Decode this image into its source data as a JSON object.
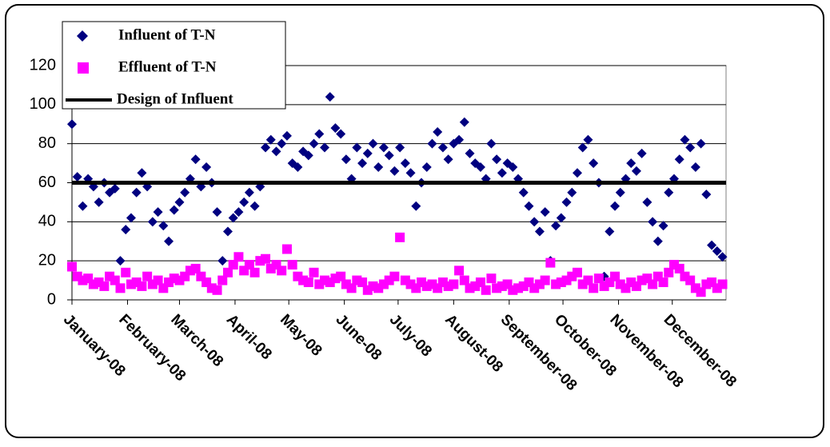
{
  "chart_data": {
    "type": "scatter",
    "xlim": [
      1,
      366
    ],
    "ylim": [
      0,
      120
    ],
    "xticks": [
      {
        "value": 1,
        "label": "January-08"
      },
      {
        "value": 32,
        "label": "February-08"
      },
      {
        "value": 61,
        "label": "March-08"
      },
      {
        "value": 92,
        "label": "April-08"
      },
      {
        "value": 122,
        "label": "May-08"
      },
      {
        "value": 153,
        "label": "June-08"
      },
      {
        "value": 183,
        "label": "July-08"
      },
      {
        "value": 214,
        "label": "August-08"
      },
      {
        "value": 245,
        "label": "September-08"
      },
      {
        "value": 275,
        "label": "October-08"
      },
      {
        "value": 306,
        "label": "November-08"
      },
      {
        "value": 336,
        "label": "December-08"
      }
    ],
    "yticks": [
      0,
      20,
      40,
      60,
      80,
      100,
      120
    ],
    "grid": true,
    "legend": "top-left",
    "x": [
      1,
      4,
      7,
      10,
      13,
      16,
      19,
      22,
      25,
      28,
      31,
      34,
      37,
      40,
      43,
      46,
      49,
      52,
      55,
      58,
      61,
      64,
      67,
      70,
      73,
      76,
      79,
      82,
      85,
      88,
      91,
      94,
      97,
      100,
      103,
      106,
      109,
      112,
      115,
      118,
      121,
      124,
      127,
      130,
      133,
      136,
      139,
      142,
      145,
      148,
      151,
      154,
      157,
      160,
      163,
      166,
      169,
      172,
      175,
      178,
      181,
      184,
      187,
      190,
      193,
      196,
      199,
      202,
      205,
      208,
      211,
      214,
      217,
      220,
      223,
      226,
      229,
      232,
      235,
      238,
      241,
      244,
      247,
      250,
      253,
      256,
      259,
      262,
      265,
      268,
      271,
      274,
      277,
      280,
      283,
      286,
      289,
      292,
      295,
      298,
      301,
      304,
      307,
      310,
      313,
      316,
      319,
      322,
      325,
      328,
      331,
      334,
      337,
      340,
      343,
      346,
      349,
      352,
      355,
      358,
      361,
      364
    ],
    "series": [
      {
        "name": "Influent of T-N",
        "color": "#000080",
        "marker": "diamond",
        "values": [
          90,
          63,
          48,
          62,
          58,
          50,
          60,
          55,
          57,
          20,
          36,
          42,
          55,
          65,
          58,
          40,
          45,
          38,
          30,
          46,
          50,
          55,
          62,
          72,
          58,
          68,
          60,
          45,
          20,
          35,
          42,
          45,
          50,
          55,
          48,
          58,
          78,
          82,
          76,
          80,
          84,
          70,
          68,
          76,
          74,
          80,
          85,
          78,
          104,
          88,
          85,
          72,
          62,
          78,
          70,
          75,
          80,
          68,
          78,
          74,
          66,
          78,
          70,
          65,
          48,
          60,
          68,
          80,
          86,
          78,
          72,
          80,
          82,
          91,
          75,
          70,
          68,
          62,
          80,
          72,
          65,
          70,
          68,
          62,
          55,
          48,
          40,
          35,
          45,
          20,
          38,
          42,
          50,
          55,
          65,
          78,
          82,
          70,
          60,
          12,
          35,
          48,
          55,
          62,
          70,
          66,
          75,
          50,
          40,
          30,
          38,
          55,
          62,
          72,
          82,
          78,
          68,
          80,
          54,
          28,
          25,
          22
        ]
      },
      {
        "name": "Effluent of T-N",
        "color": "#ff00ff",
        "marker": "square",
        "values": [
          17,
          12,
          10,
          11,
          8,
          9,
          7,
          12,
          10,
          6,
          14,
          8,
          9,
          7,
          12,
          8,
          10,
          6,
          9,
          11,
          10,
          12,
          15,
          16,
          12,
          9,
          6,
          5,
          10,
          14,
          18,
          22,
          15,
          18,
          14,
          20,
          21,
          16,
          18,
          15,
          26,
          18,
          12,
          10,
          9,
          14,
          8,
          10,
          9,
          11,
          12,
          8,
          6,
          10,
          9,
          5,
          7,
          6,
          8,
          10,
          12,
          32,
          10,
          8,
          6,
          9,
          7,
          8,
          6,
          9,
          7,
          8,
          15,
          10,
          6,
          7,
          9,
          5,
          11,
          6,
          7,
          8,
          5,
          6,
          7,
          9,
          6,
          8,
          10,
          19,
          8,
          9,
          10,
          12,
          14,
          8,
          10,
          6,
          11,
          7,
          9,
          12,
          8,
          6,
          9,
          7,
          10,
          11,
          8,
          12,
          9,
          14,
          18,
          16,
          12,
          10,
          6,
          4,
          8,
          9,
          6,
          8
        ]
      }
    ],
    "reference_line": {
      "name": "Design of Influent",
      "value": 60,
      "color": "#000000"
    }
  }
}
